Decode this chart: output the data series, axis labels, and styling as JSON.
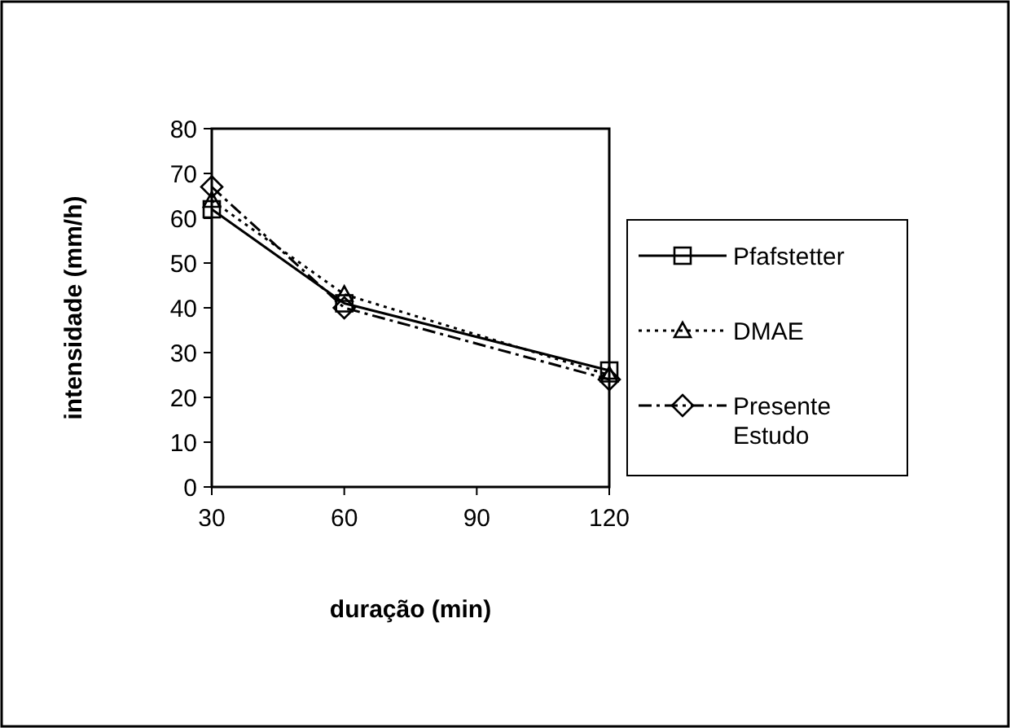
{
  "chart_data": {
    "type": "line",
    "xlabel": "duração (min)",
    "ylabel": "intensidade (mm/h)",
    "x": [
      30,
      60,
      120
    ],
    "xlim": [
      30,
      120
    ],
    "xticks": [
      30,
      60,
      90,
      120
    ],
    "ylim": [
      0,
      80
    ],
    "yticks": [
      0,
      10,
      20,
      30,
      40,
      50,
      60,
      70,
      80
    ],
    "grid": false,
    "legend": "right",
    "series": [
      {
        "name": "Pfafstetter",
        "color": "#000000",
        "marker": "square",
        "line_style": "solid",
        "values": [
          62,
          41,
          26
        ]
      },
      {
        "name": "DMAE",
        "color": "#000000",
        "marker": "triangle",
        "line_style": "dotted",
        "values": [
          64,
          43,
          25
        ]
      },
      {
        "name": "Presente Estudo",
        "color": "#000000",
        "marker": "diamond",
        "line_style": "dashed",
        "values": [
          67,
          40,
          24
        ]
      }
    ]
  }
}
